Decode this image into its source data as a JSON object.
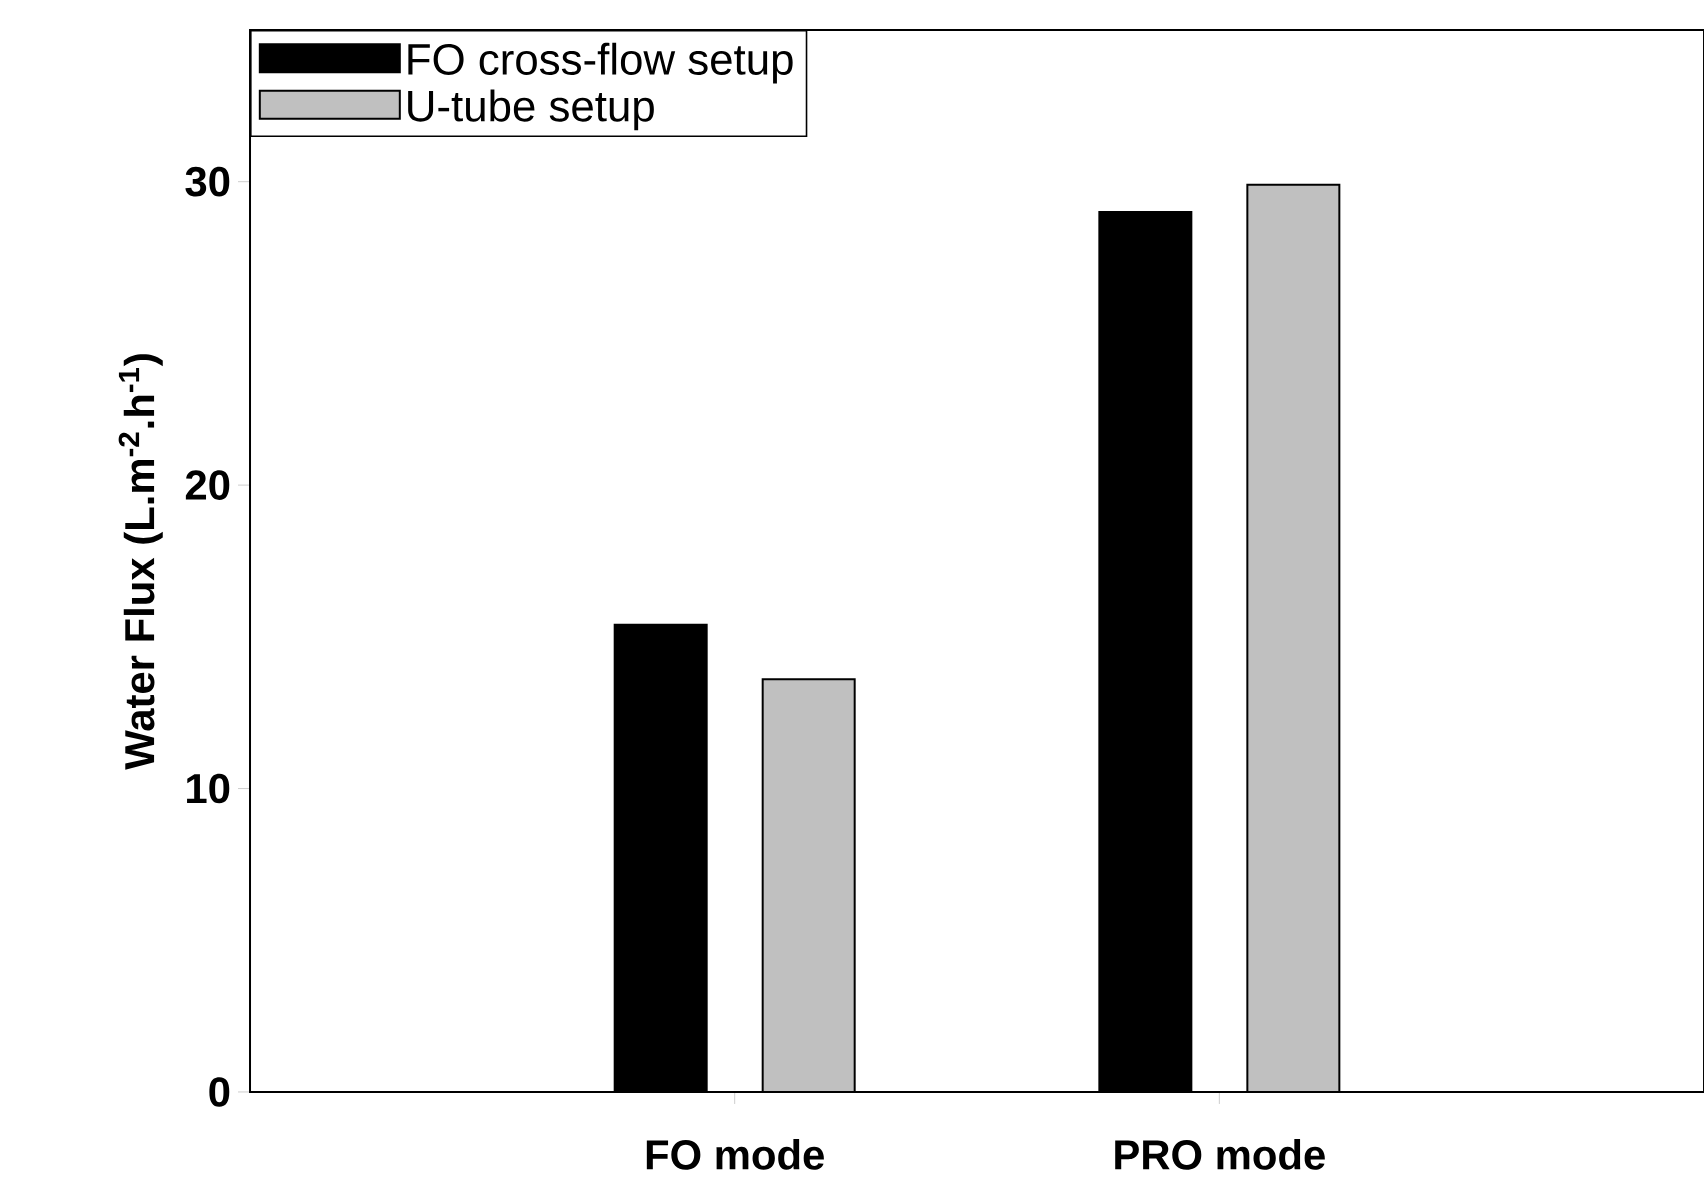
{
  "chart_data": {
    "type": "bar",
    "ylabel": "Water Flux (L.m$^{-2}$.h$^{-1}$)",
    "categories": [
      "FO mode",
      "PRO mode"
    ],
    "series": [
      {
        "name": "FO cross-flow setup",
        "color": "#000000",
        "values": [
          15.4,
          29.0
        ]
      },
      {
        "name": "U-tube setup",
        "color": "#c0c0c0",
        "values": [
          13.6,
          29.9
        ]
      }
    ],
    "ylim": [
      0,
      35
    ],
    "yticks": [
      0,
      10,
      20,
      30
    ],
    "legend": "top left"
  }
}
